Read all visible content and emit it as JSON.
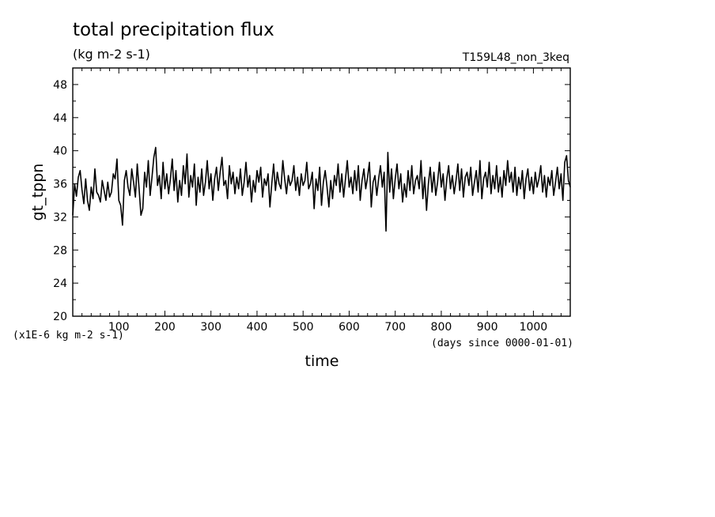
{
  "chart_data": {
    "type": "line",
    "title": "total precipitation flux",
    "subtitle": "(kg m-2 s-1)",
    "run_label": "T159L48_non_3keq",
    "xlabel": "time",
    "ylabel": "gt_tppn",
    "x_units_note": "(days since 0000-01-01)",
    "y_scale_note": "(x1E-6 kg m-2 s-1)",
    "xlim": [
      0,
      1080
    ],
    "ylim": [
      20,
      50
    ],
    "x_ticks": [
      100,
      200,
      300,
      400,
      500,
      600,
      700,
      800,
      900,
      1000
    ],
    "y_ticks": [
      20,
      24,
      28,
      32,
      36,
      40,
      44,
      48
    ],
    "grid": false,
    "series": [
      {
        "points": [
          [
            0,
            32.2
          ],
          [
            4,
            36.0
          ],
          [
            8,
            34.5
          ],
          [
            12,
            36.8
          ],
          [
            16,
            37.6
          ],
          [
            20,
            35.3
          ],
          [
            24,
            33.6
          ],
          [
            28,
            36.6
          ],
          [
            32,
            34.0
          ],
          [
            36,
            32.8
          ],
          [
            40,
            35.6
          ],
          [
            44,
            34.2
          ],
          [
            48,
            37.8
          ],
          [
            52,
            35.0
          ],
          [
            56,
            34.6
          ],
          [
            60,
            33.8
          ],
          [
            64,
            36.4
          ],
          [
            68,
            35.2
          ],
          [
            72,
            34.0
          ],
          [
            76,
            36.2
          ],
          [
            80,
            34.4
          ],
          [
            84,
            35.0
          ],
          [
            88,
            37.2
          ],
          [
            92,
            36.6
          ],
          [
            96,
            39.0
          ],
          [
            100,
            34.0
          ],
          [
            104,
            33.4
          ],
          [
            108,
            31.0
          ],
          [
            112,
            36.4
          ],
          [
            116,
            37.6
          ],
          [
            120,
            35.6
          ],
          [
            124,
            34.6
          ],
          [
            128,
            37.8
          ],
          [
            132,
            36.2
          ],
          [
            136,
            34.4
          ],
          [
            140,
            38.4
          ],
          [
            144,
            35.4
          ],
          [
            148,
            32.2
          ],
          [
            152,
            33.0
          ],
          [
            156,
            37.4
          ],
          [
            160,
            35.6
          ],
          [
            164,
            38.8
          ],
          [
            168,
            34.6
          ],
          [
            172,
            36.8
          ],
          [
            176,
            39.2
          ],
          [
            180,
            40.4
          ],
          [
            184,
            35.8
          ],
          [
            188,
            37.0
          ],
          [
            192,
            34.2
          ],
          [
            196,
            38.6
          ],
          [
            200,
            35.4
          ],
          [
            204,
            37.2
          ],
          [
            208,
            34.8
          ],
          [
            212,
            36.6
          ],
          [
            216,
            39.0
          ],
          [
            220,
            35.2
          ],
          [
            224,
            37.6
          ],
          [
            228,
            33.8
          ],
          [
            232,
            36.4
          ],
          [
            236,
            34.6
          ],
          [
            240,
            38.2
          ],
          [
            244,
            36.0
          ],
          [
            248,
            39.6
          ],
          [
            252,
            34.4
          ],
          [
            256,
            37.0
          ],
          [
            260,
            35.6
          ],
          [
            264,
            38.4
          ],
          [
            268,
            33.4
          ],
          [
            272,
            36.8
          ],
          [
            276,
            35.0
          ],
          [
            280,
            37.8
          ],
          [
            284,
            34.6
          ],
          [
            288,
            36.2
          ],
          [
            292,
            38.8
          ],
          [
            296,
            35.4
          ],
          [
            300,
            37.2
          ],
          [
            304,
            34.0
          ],
          [
            308,
            36.6
          ],
          [
            312,
            38.0
          ],
          [
            316,
            35.2
          ],
          [
            320,
            37.4
          ],
          [
            324,
            39.2
          ],
          [
            328,
            35.8
          ],
          [
            332,
            36.4
          ],
          [
            336,
            34.2
          ],
          [
            340,
            38.2
          ],
          [
            344,
            36.0
          ],
          [
            348,
            37.4
          ],
          [
            352,
            34.8
          ],
          [
            356,
            36.8
          ],
          [
            360,
            35.4
          ],
          [
            364,
            37.8
          ],
          [
            368,
            34.6
          ],
          [
            372,
            36.2
          ],
          [
            376,
            38.6
          ],
          [
            380,
            35.6
          ],
          [
            384,
            37.0
          ],
          [
            388,
            33.8
          ],
          [
            392,
            36.4
          ],
          [
            396,
            35.0
          ],
          [
            400,
            37.6
          ],
          [
            404,
            36.2
          ],
          [
            408,
            38.0
          ],
          [
            412,
            34.4
          ],
          [
            416,
            36.6
          ],
          [
            420,
            35.8
          ],
          [
            424,
            37.2
          ],
          [
            428,
            33.2
          ],
          [
            432,
            36.0
          ],
          [
            436,
            38.4
          ],
          [
            440,
            35.2
          ],
          [
            444,
            37.4
          ],
          [
            448,
            36.0
          ],
          [
            452,
            35.4
          ],
          [
            456,
            38.8
          ],
          [
            460,
            36.6
          ],
          [
            464,
            34.8
          ],
          [
            468,
            37.0
          ],
          [
            472,
            35.8
          ],
          [
            476,
            36.4
          ],
          [
            480,
            38.2
          ],
          [
            484,
            35.2
          ],
          [
            488,
            36.8
          ],
          [
            492,
            34.6
          ],
          [
            496,
            37.2
          ],
          [
            500,
            35.8
          ],
          [
            504,
            36.4
          ],
          [
            508,
            38.6
          ],
          [
            512,
            35.4
          ],
          [
            516,
            36.0
          ],
          [
            520,
            37.4
          ],
          [
            524,
            33.0
          ],
          [
            528,
            36.6
          ],
          [
            532,
            35.2
          ],
          [
            536,
            38.0
          ],
          [
            540,
            33.4
          ],
          [
            544,
            36.2
          ],
          [
            548,
            37.6
          ],
          [
            552,
            35.6
          ],
          [
            556,
            33.2
          ],
          [
            560,
            36.4
          ],
          [
            564,
            34.2
          ],
          [
            568,
            37.0
          ],
          [
            572,
            35.8
          ],
          [
            576,
            38.4
          ],
          [
            580,
            35.0
          ],
          [
            584,
            37.2
          ],
          [
            588,
            34.4
          ],
          [
            592,
            36.6
          ],
          [
            596,
            38.8
          ],
          [
            600,
            35.6
          ],
          [
            604,
            36.8
          ],
          [
            608,
            34.8
          ],
          [
            612,
            37.6
          ],
          [
            616,
            35.2
          ],
          [
            620,
            38.2
          ],
          [
            624,
            34.0
          ],
          [
            628,
            36.4
          ],
          [
            632,
            37.8
          ],
          [
            636,
            35.4
          ],
          [
            640,
            36.8
          ],
          [
            644,
            38.6
          ],
          [
            648,
            33.2
          ],
          [
            652,
            36.2
          ],
          [
            656,
            37.0
          ],
          [
            660,
            34.6
          ],
          [
            664,
            36.6
          ],
          [
            668,
            38.2
          ],
          [
            672,
            35.6
          ],
          [
            676,
            37.4
          ],
          [
            680,
            30.3
          ],
          [
            684,
            39.8
          ],
          [
            688,
            35.0
          ],
          [
            692,
            37.8
          ],
          [
            696,
            34.2
          ],
          [
            700,
            36.6
          ],
          [
            704,
            38.4
          ],
          [
            708,
            35.4
          ],
          [
            712,
            37.2
          ],
          [
            716,
            33.8
          ],
          [
            720,
            36.0
          ],
          [
            724,
            34.4
          ],
          [
            728,
            37.6
          ],
          [
            732,
            35.2
          ],
          [
            736,
            38.2
          ],
          [
            740,
            34.8
          ],
          [
            744,
            36.4
          ],
          [
            748,
            37.0
          ],
          [
            752,
            35.4
          ],
          [
            756,
            38.8
          ],
          [
            760,
            34.2
          ],
          [
            764,
            36.8
          ],
          [
            768,
            32.8
          ],
          [
            772,
            36.0
          ],
          [
            776,
            38.0
          ],
          [
            780,
            35.0
          ],
          [
            784,
            37.4
          ],
          [
            788,
            34.6
          ],
          [
            792,
            36.2
          ],
          [
            796,
            38.6
          ],
          [
            800,
            35.6
          ],
          [
            804,
            37.2
          ],
          [
            808,
            34.0
          ],
          [
            812,
            36.6
          ],
          [
            816,
            38.2
          ],
          [
            820,
            35.4
          ],
          [
            824,
            37.0
          ],
          [
            828,
            34.8
          ],
          [
            832,
            36.4
          ],
          [
            836,
            38.4
          ],
          [
            840,
            35.2
          ],
          [
            844,
            37.8
          ],
          [
            848,
            34.4
          ],
          [
            852,
            36.8
          ],
          [
            856,
            37.4
          ],
          [
            860,
            35.8
          ],
          [
            864,
            38.0
          ],
          [
            868,
            34.6
          ],
          [
            872,
            36.2
          ],
          [
            876,
            37.6
          ],
          [
            880,
            35.0
          ],
          [
            884,
            38.8
          ],
          [
            888,
            34.2
          ],
          [
            892,
            36.6
          ],
          [
            896,
            37.4
          ],
          [
            900,
            35.6
          ],
          [
            904,
            38.6
          ],
          [
            908,
            34.8
          ],
          [
            912,
            37.0
          ],
          [
            916,
            35.4
          ],
          [
            920,
            38.2
          ],
          [
            924,
            35.0
          ],
          [
            928,
            36.8
          ],
          [
            932,
            34.4
          ],
          [
            936,
            37.6
          ],
          [
            940,
            35.8
          ],
          [
            944,
            38.8
          ],
          [
            948,
            36.2
          ],
          [
            952,
            37.4
          ],
          [
            956,
            35.0
          ],
          [
            960,
            38.0
          ],
          [
            964,
            34.6
          ],
          [
            968,
            36.8
          ],
          [
            972,
            35.4
          ],
          [
            976,
            37.6
          ],
          [
            980,
            34.2
          ],
          [
            984,
            36.6
          ],
          [
            988,
            37.8
          ],
          [
            992,
            35.2
          ],
          [
            996,
            36.8
          ],
          [
            1000,
            34.8
          ],
          [
            1004,
            37.4
          ],
          [
            1008,
            35.6
          ],
          [
            1012,
            36.6
          ],
          [
            1016,
            38.2
          ],
          [
            1020,
            35.0
          ],
          [
            1024,
            37.0
          ],
          [
            1028,
            34.4
          ],
          [
            1032,
            36.8
          ],
          [
            1036,
            35.8
          ],
          [
            1040,
            37.6
          ],
          [
            1044,
            34.6
          ],
          [
            1048,
            36.2
          ],
          [
            1052,
            38.0
          ],
          [
            1056,
            35.4
          ],
          [
            1060,
            37.2
          ],
          [
            1064,
            34.0
          ],
          [
            1068,
            38.6
          ],
          [
            1072,
            39.4
          ],
          [
            1076,
            36.4
          ],
          [
            1080,
            35.6
          ]
        ]
      }
    ]
  }
}
